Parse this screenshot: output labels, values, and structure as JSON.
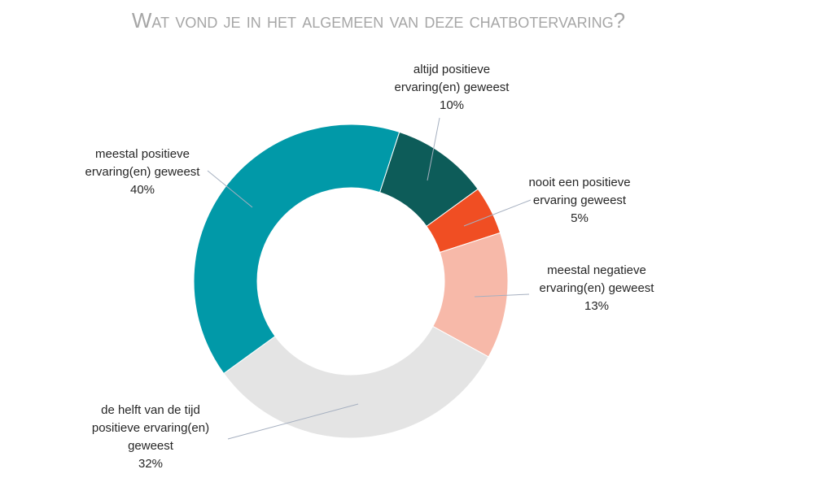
{
  "chart_data": {
    "type": "donut",
    "title": "Wat vond je in het algemeen van deze chatbotervaring?",
    "categories": [
      "altijd positieve ervaring(en) geweest",
      "nooit een positieve ervaring geweest",
      "meestal negatieve ervaring(en) geweest",
      "de helft van de tijd positieve ervaring(en) geweest",
      "meestal positieve ervaring(en) geweest"
    ],
    "values": [
      10,
      5,
      13,
      32,
      40
    ],
    "value_labels": [
      "10%",
      "5%",
      "13%",
      "32%",
      "40%"
    ],
    "colors": [
      "#0d5c59",
      "#f04e23",
      "#f7b9a9",
      "#e4e4e4",
      "#0199a8"
    ]
  }
}
